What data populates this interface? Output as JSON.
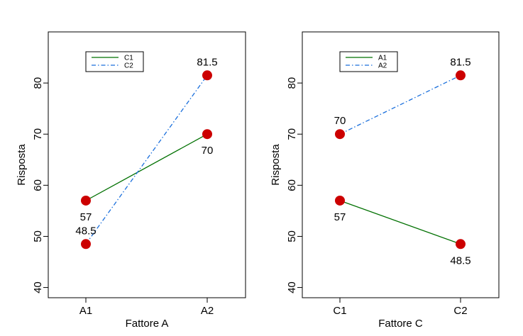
{
  "colors": {
    "solid": "#007000",
    "dashed": "#1a6fdc",
    "point": "#cc0000"
  },
  "chart_data": [
    {
      "type": "line",
      "title": "",
      "xlabel": "Fattore A",
      "ylabel": "Risposta",
      "categories": [
        "A1",
        "A2"
      ],
      "ylim": [
        38,
        90
      ],
      "yticks": [
        40,
        50,
        60,
        70,
        80
      ],
      "ytick_labels": [
        "40",
        "50",
        "60",
        "70",
        "80"
      ],
      "legend_position": "top-left",
      "series": [
        {
          "name": "C1",
          "values": [
            57,
            70
          ],
          "labels": [
            "57",
            "70"
          ],
          "label_pos": [
            "below",
            "below"
          ],
          "style": "solid"
        },
        {
          "name": "C2",
          "values": [
            48.5,
            81.5
          ],
          "labels": [
            "48.5",
            "81.5"
          ],
          "label_pos": [
            "above",
            "above"
          ],
          "style": "dashdot"
        }
      ]
    },
    {
      "type": "line",
      "title": "",
      "xlabel": "Fattore C",
      "ylabel": "Risposta",
      "categories": [
        "C1",
        "C2"
      ],
      "ylim": [
        38,
        90
      ],
      "yticks": [
        40,
        50,
        60,
        70,
        80
      ],
      "ytick_labels": [
        "40",
        "50",
        "60",
        "70",
        "80"
      ],
      "legend_position": "top-left",
      "series": [
        {
          "name": "A1",
          "values": [
            57,
            48.5
          ],
          "labels": [
            "57",
            "48.5"
          ],
          "label_pos": [
            "below",
            "below"
          ],
          "style": "solid"
        },
        {
          "name": "A2",
          "values": [
            70,
            81.5
          ],
          "labels": [
            "70",
            "81.5"
          ],
          "label_pos": [
            "above",
            "above"
          ],
          "style": "dashdot"
        }
      ]
    }
  ]
}
